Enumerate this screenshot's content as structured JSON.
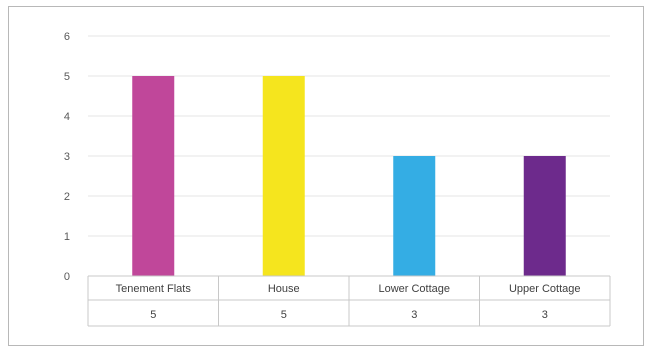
{
  "chart_data": {
    "type": "bar",
    "categories": [
      "Tenement Flats",
      "House",
      "Lower Cottage",
      "Upper Cottage"
    ],
    "values": [
      5,
      5,
      3,
      3
    ],
    "data_table": [
      "5",
      "5",
      "3",
      "3"
    ],
    "bar_colors": [
      "#c0479a",
      "#f5e51e",
      "#34ade4",
      "#6d2a8c"
    ],
    "ylim": [
      0,
      6
    ],
    "yticks": [
      "0",
      "1",
      "2",
      "3",
      "4",
      "5",
      "6"
    ],
    "grid": true,
    "legend": "none",
    "title": "",
    "xlabel": "",
    "ylabel": ""
  }
}
